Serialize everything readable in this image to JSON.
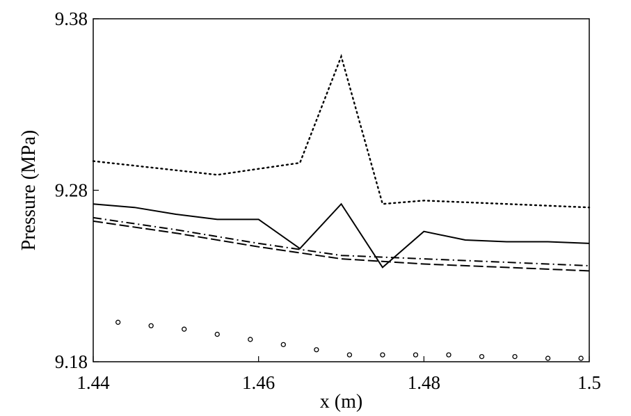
{
  "chart_data": {
    "type": "line",
    "xlabel": "x (m)",
    "ylabel": "Pressure (MPa)",
    "xlim": [
      1.44,
      1.5
    ],
    "ylim": [
      9.18,
      9.38
    ],
    "xticks": [
      "1.44",
      "1.46",
      "1.48",
      "1.5"
    ],
    "yticks": [
      "9.18",
      "9.28",
      "9.38"
    ],
    "grid": false,
    "legend": "none",
    "series": [
      {
        "style": "dotted",
        "color": "#000000",
        "x": [
          1.44,
          1.455,
          1.465,
          1.47,
          1.475,
          1.48,
          1.49,
          1.5
        ],
        "y": [
          9.297,
          9.289,
          9.296,
          9.358,
          9.272,
          9.274,
          9.272,
          9.27
        ]
      },
      {
        "style": "solid",
        "color": "#000000",
        "x": [
          1.44,
          1.445,
          1.45,
          1.455,
          1.46,
          1.465,
          1.47,
          1.475,
          1.48,
          1.485,
          1.49,
          1.495,
          1.5
        ],
        "y": [
          9.272,
          9.27,
          9.266,
          9.263,
          9.263,
          9.246,
          9.272,
          9.235,
          9.256,
          9.251,
          9.25,
          9.25,
          9.249
        ]
      },
      {
        "style": "dashdot",
        "color": "#000000",
        "x": [
          1.44,
          1.45,
          1.46,
          1.47,
          1.48,
          1.49,
          1.5
        ],
        "y": [
          9.264,
          9.257,
          9.249,
          9.242,
          9.24,
          9.238,
          9.236
        ]
      },
      {
        "style": "dashed",
        "color": "#000000",
        "x": [
          1.44,
          1.45,
          1.46,
          1.47,
          1.48,
          1.49,
          1.5
        ],
        "y": [
          9.262,
          9.255,
          9.247,
          9.24,
          9.237,
          9.235,
          9.233
        ]
      },
      {
        "style": "circles",
        "color": "#000000",
        "x": [
          1.443,
          1.447,
          1.451,
          1.455,
          1.459,
          1.463,
          1.467,
          1.471,
          1.475,
          1.479,
          1.483,
          1.487,
          1.491,
          1.495,
          1.499
        ],
        "y": [
          9.203,
          9.201,
          9.199,
          9.196,
          9.193,
          9.19,
          9.187,
          9.184,
          9.184,
          9.184,
          9.184,
          9.183,
          9.183,
          9.182,
          9.182
        ]
      }
    ]
  }
}
